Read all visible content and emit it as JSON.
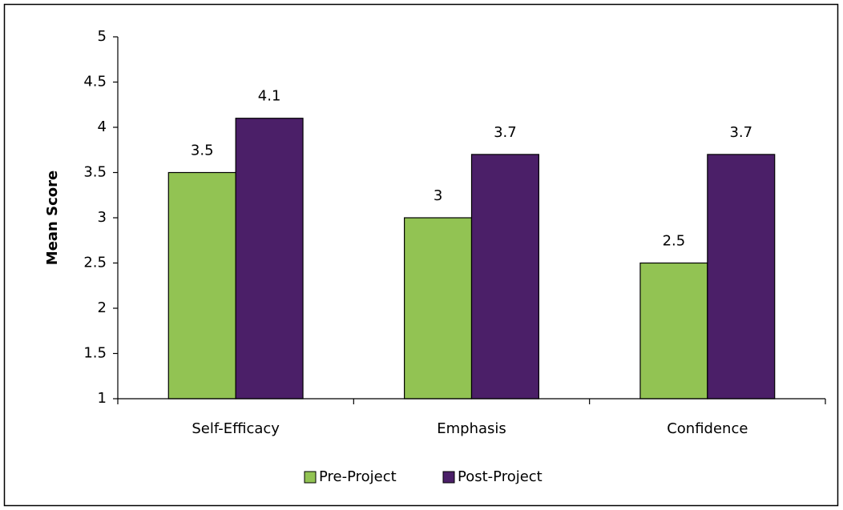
{
  "chart_data": {
    "type": "bar",
    "y_label": "Mean Score",
    "categories": [
      "Self-Efficacy",
      "Emphasis",
      "Confidence"
    ],
    "series": [
      {
        "name": "Pre-Project",
        "color": "#92c353",
        "values": [
          3.5,
          3,
          2.5
        ]
      },
      {
        "name": "Post-Project",
        "color": "#4b1f68",
        "values": [
          4.1,
          3.7,
          3.7
        ]
      }
    ],
    "ylim": [
      1,
      5
    ],
    "yticks": [
      1,
      1.5,
      2,
      2.5,
      3,
      3.5,
      4,
      4.5,
      5
    ],
    "legend": "bottom"
  }
}
